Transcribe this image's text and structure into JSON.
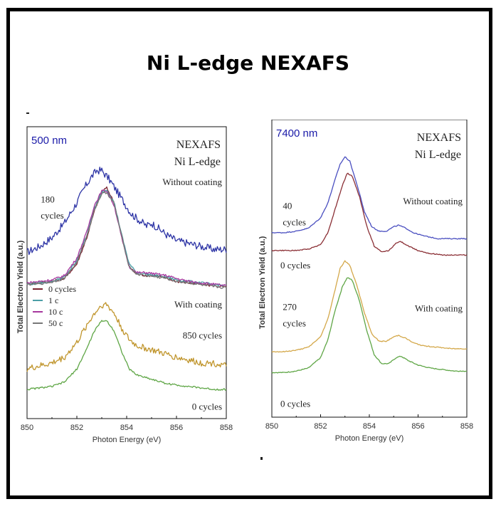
{
  "title": "Ni L-edge NEXAFS",
  "chart_data": [
    {
      "type": "line",
      "panel": "left",
      "sample_label": "500 nm",
      "heading_lines": [
        "NEXAFS",
        "Ni L-edge"
      ],
      "xlabel": "Photon Energy (eV)",
      "ylabel": "Total Electron Yield (a.u.)",
      "xlim": [
        850,
        858
      ],
      "xticks": [
        850,
        852,
        854,
        856,
        858
      ],
      "annotations": [
        {
          "text": "180",
          "x": 850.55,
          "y": 0.74
        },
        {
          "text": "cycles",
          "x": 850.55,
          "y": 0.685
        },
        {
          "text": "Without coating",
          "x": 856.4,
          "y": 0.8
        },
        {
          "text": "With coating",
          "x": 856.1,
          "y": 0.38
        },
        {
          "text": "850 cycles",
          "x": 856.9,
          "y": 0.275
        },
        {
          "text": "0 cycles",
          "x": 857.3,
          "y": 0.03
        }
      ],
      "legend": [
        {
          "label": "0 cycles",
          "color": "#7a2230"
        },
        {
          "label": "1 c",
          "color": "#4c9fa6"
        },
        {
          "label": "10 c",
          "color": "#a6379e"
        },
        {
          "label": "50 c",
          "color": "#777777"
        }
      ],
      "legend_placement": "center-left",
      "series": [
        {
          "color": "#2e35a6",
          "noise": 0.013,
          "x": [
            850,
            850.5,
            851,
            851.5,
            852,
            852.3,
            852.6,
            852.8,
            853,
            853.3,
            853.6,
            853.9,
            854.2,
            854.5,
            854.8,
            855,
            855.3,
            855.6,
            856,
            856.5,
            857,
            857.5,
            858
          ],
          "y": [
            0.57,
            0.59,
            0.62,
            0.67,
            0.74,
            0.79,
            0.83,
            0.85,
            0.85,
            0.82,
            0.78,
            0.74,
            0.7,
            0.68,
            0.66,
            0.67,
            0.65,
            0.63,
            0.61,
            0.6,
            0.59,
            0.58,
            0.58
          ]
        },
        {
          "color": "#7a2230",
          "noise": 0.004,
          "x": [
            850,
            850.5,
            851,
            851.5,
            852,
            852.4,
            852.7,
            853,
            853.2,
            853.5,
            853.8,
            854.1,
            854.4,
            854.8,
            855.2,
            855.6,
            856,
            856.5,
            857,
            857.5,
            858
          ],
          "y": [
            0.46,
            0.465,
            0.47,
            0.48,
            0.53,
            0.62,
            0.71,
            0.78,
            0.79,
            0.74,
            0.62,
            0.52,
            0.495,
            0.49,
            0.49,
            0.48,
            0.47,
            0.465,
            0.46,
            0.455,
            0.45
          ]
        },
        {
          "color": "#4c9fa6",
          "noise": 0.004,
          "x": [
            850,
            850.5,
            851,
            851.5,
            852,
            852.4,
            852.7,
            853,
            853.2,
            853.5,
            853.8,
            854.1,
            854.4,
            854.8,
            855.2,
            855.6,
            856,
            856.5,
            857,
            857.5,
            858
          ],
          "y": [
            0.46,
            0.465,
            0.47,
            0.485,
            0.54,
            0.63,
            0.72,
            0.775,
            0.785,
            0.74,
            0.63,
            0.53,
            0.5,
            0.495,
            0.49,
            0.485,
            0.475,
            0.47,
            0.465,
            0.46,
            0.455
          ]
        },
        {
          "color": "#a6379e",
          "noise": 0.004,
          "x": [
            850,
            850.5,
            851,
            851.5,
            852,
            852.4,
            852.7,
            853,
            853.2,
            853.5,
            853.8,
            854.1,
            854.4,
            854.8,
            855.2,
            855.6,
            856,
            856.5,
            857,
            857.5,
            858
          ],
          "y": [
            0.465,
            0.47,
            0.475,
            0.49,
            0.55,
            0.64,
            0.73,
            0.78,
            0.78,
            0.73,
            0.62,
            0.52,
            0.5,
            0.5,
            0.495,
            0.49,
            0.48,
            0.47,
            0.465,
            0.46,
            0.455
          ]
        },
        {
          "color": "#777777",
          "noise": 0.004,
          "x": [
            850,
            850.5,
            851,
            851.5,
            852,
            852.4,
            852.7,
            853,
            853.2,
            853.5,
            853.8,
            854.1,
            854.4,
            854.8,
            855.2,
            855.6,
            856,
            856.5,
            857,
            857.5,
            858
          ],
          "y": [
            0.46,
            0.462,
            0.468,
            0.48,
            0.535,
            0.625,
            0.715,
            0.77,
            0.775,
            0.735,
            0.625,
            0.52,
            0.495,
            0.49,
            0.485,
            0.48,
            0.47,
            0.465,
            0.458,
            0.452,
            0.448
          ]
        },
        {
          "color": "#c0952c",
          "noise": 0.011,
          "x": [
            850,
            850.5,
            851,
            851.5,
            852,
            852.4,
            852.7,
            853,
            853.2,
            853.5,
            853.8,
            854.1,
            854.4,
            854.8,
            855.2,
            855.6,
            856,
            856.5,
            857,
            857.5,
            858
          ],
          "y": [
            0.17,
            0.18,
            0.19,
            0.21,
            0.26,
            0.32,
            0.36,
            0.39,
            0.39,
            0.36,
            0.31,
            0.27,
            0.25,
            0.24,
            0.23,
            0.22,
            0.21,
            0.2,
            0.19,
            0.19,
            0.18
          ]
        },
        {
          "color": "#5fa646",
          "noise": 0.003,
          "x": [
            850,
            850.5,
            851,
            851.5,
            852,
            852.4,
            852.7,
            853,
            853.2,
            853.5,
            853.8,
            854.1,
            854.4,
            854.8,
            855.2,
            855.6,
            856,
            856.5,
            857,
            857.5,
            858
          ],
          "y": [
            0.1,
            0.105,
            0.11,
            0.125,
            0.17,
            0.24,
            0.3,
            0.335,
            0.335,
            0.3,
            0.23,
            0.17,
            0.15,
            0.14,
            0.13,
            0.12,
            0.115,
            0.11,
            0.105,
            0.1,
            0.1
          ]
        }
      ]
    },
    {
      "type": "line",
      "panel": "right",
      "sample_label": "7400 nm",
      "heading_lines": [
        "NEXAFS",
        "Ni L-edge"
      ],
      "xlabel": "Photon Energy (eV)",
      "ylabel": "Total Electron Yield (a.u.)",
      "xlim": [
        850,
        858
      ],
      "xticks": [
        850,
        852,
        854,
        856,
        858
      ],
      "annotations": [
        {
          "text": "40",
          "x": 850.45,
          "y": 0.7
        },
        {
          "text": "cycles",
          "x": 850.45,
          "y": 0.645
        },
        {
          "text": "Without coating",
          "x": 856.5,
          "y": 0.715
        },
        {
          "text": "0 cycles",
          "x": 850.35,
          "y": 0.5
        },
        {
          "text": "270",
          "x": 850.45,
          "y": 0.36
        },
        {
          "text": "cycles",
          "x": 850.45,
          "y": 0.305
        },
        {
          "text": "With coating",
          "x": 856.2,
          "y": 0.355
        },
        {
          "text": "0 cycles",
          "x": 850.35,
          "y": 0.035
        }
      ],
      "series": [
        {
          "color": "#4a4fc0",
          "noise": 0.0015,
          "x": [
            850,
            850.5,
            851,
            851.5,
            852,
            852.3,
            852.6,
            852.8,
            853,
            853.2,
            853.5,
            853.8,
            854.1,
            854.4,
            854.7,
            855,
            855.2,
            855.5,
            855.8,
            856.2,
            856.8,
            857.4,
            858
          ],
          "y": [
            0.62,
            0.62,
            0.625,
            0.635,
            0.67,
            0.72,
            0.8,
            0.85,
            0.875,
            0.86,
            0.78,
            0.69,
            0.64,
            0.625,
            0.625,
            0.64,
            0.645,
            0.635,
            0.62,
            0.61,
            0.6,
            0.6,
            0.6
          ]
        },
        {
          "color": "#8b3036",
          "noise": 0.0015,
          "x": [
            850,
            850.5,
            851,
            851.5,
            852,
            852.3,
            852.6,
            852.9,
            853.1,
            853.3,
            853.6,
            853.9,
            854.2,
            854.5,
            854.8,
            855.1,
            855.3,
            855.6,
            856,
            856.5,
            857,
            857.5,
            858
          ],
          "y": [
            0.56,
            0.56,
            0.56,
            0.565,
            0.58,
            0.62,
            0.7,
            0.78,
            0.82,
            0.81,
            0.74,
            0.64,
            0.575,
            0.555,
            0.56,
            0.585,
            0.59,
            0.575,
            0.56,
            0.55,
            0.545,
            0.545,
            0.545
          ]
        },
        {
          "color": "#d4a84a",
          "noise": 0.0015,
          "x": [
            850,
            850.5,
            851,
            851.5,
            852,
            852.3,
            852.6,
            852.8,
            853,
            853.2,
            853.5,
            853.8,
            854.1,
            854.4,
            854.7,
            855,
            855.2,
            855.5,
            855.8,
            856.2,
            856.8,
            857.4,
            858
          ],
          "y": [
            0.22,
            0.22,
            0.225,
            0.235,
            0.27,
            0.33,
            0.43,
            0.5,
            0.525,
            0.51,
            0.44,
            0.35,
            0.28,
            0.255,
            0.255,
            0.27,
            0.275,
            0.265,
            0.25,
            0.24,
            0.235,
            0.23,
            0.23
          ]
        },
        {
          "color": "#5fa646",
          "noise": 0.0015,
          "x": [
            850,
            850.5,
            851,
            851.5,
            852,
            852.3,
            852.6,
            852.9,
            853.1,
            853.3,
            853.6,
            853.9,
            854.2,
            854.5,
            854.8,
            855.1,
            855.3,
            855.6,
            856,
            856.5,
            857,
            857.5,
            858
          ],
          "y": [
            0.15,
            0.15,
            0.155,
            0.165,
            0.2,
            0.26,
            0.36,
            0.44,
            0.47,
            0.46,
            0.39,
            0.29,
            0.21,
            0.18,
            0.18,
            0.2,
            0.205,
            0.19,
            0.175,
            0.165,
            0.16,
            0.155,
            0.155
          ]
        }
      ]
    }
  ]
}
